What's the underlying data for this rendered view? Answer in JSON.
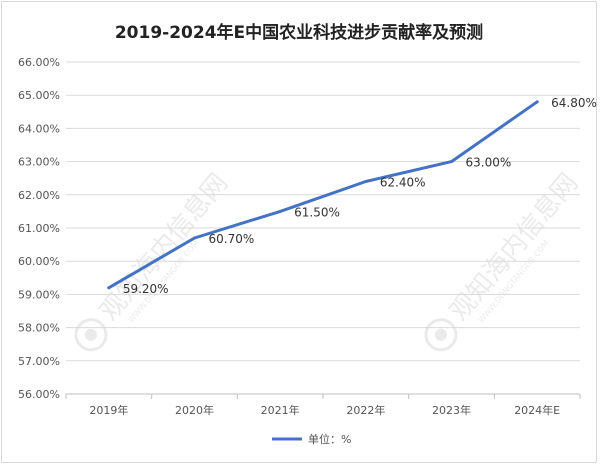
{
  "chart_data": {
    "type": "line",
    "title": "2019-2024年E中国农业科技进步贡献率及预测",
    "categories": [
      "2019年",
      "2020年",
      "2021年",
      "2022年",
      "2023年",
      "2024年E"
    ],
    "series": [
      {
        "name": "单位：%",
        "values": [
          59.2,
          60.7,
          61.5,
          62.4,
          63.0,
          64.8
        ],
        "labels": [
          "59.20%",
          "60.70%",
          "61.50%",
          "62.40%",
          "63.00%",
          "64.80%"
        ]
      }
    ],
    "ylim": [
      56,
      66
    ],
    "yticks": [
      "56.00%",
      "57.00%",
      "58.00%",
      "59.00%",
      "60.00%",
      "61.00%",
      "62.00%",
      "63.00%",
      "64.00%",
      "65.00%",
      "66.00%"
    ],
    "grid": true,
    "legend_position": "bottom",
    "line_color": "#4472c4"
  },
  "watermark": {
    "text": "观知海内信息网",
    "subtext": "WWW.DONGTANGOB.COM"
  }
}
